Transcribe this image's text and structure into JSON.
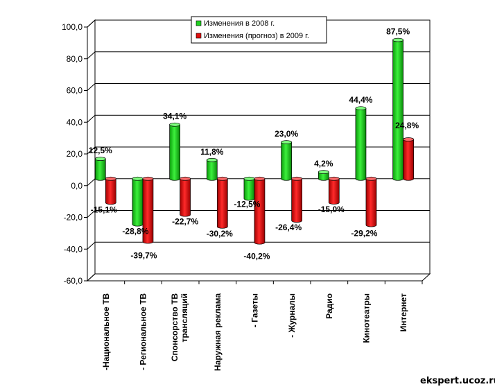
{
  "watermark": "ekspert.ucoz.ru",
  "chart_data": {
    "type": "bar",
    "title": "",
    "xlabel": "",
    "ylabel": "",
    "ylim": [
      -60,
      100
    ],
    "yticks": [
      -60,
      -40,
      -20,
      0,
      20,
      40,
      60,
      80,
      100
    ],
    "ytick_labels": [
      "-60,0",
      "-40,0",
      "-20,0",
      "0,0",
      "20,0",
      "40,0",
      "60,0",
      "80,0",
      "100,0"
    ],
    "grid": true,
    "legend_position": "top-center",
    "categories": [
      "-Национальное ТВ",
      "- Региональное ТВ",
      "Спонсорство ТВ трансляций",
      "Наружная реклама",
      "- Газеты",
      "- Журналы",
      "Радио",
      "Кинотеатры",
      "Интернет"
    ],
    "series": [
      {
        "name": "Изменения в 2008 г.",
        "color": "#1fd01f",
        "values": [
          12.5,
          -28.8,
          34.1,
          11.8,
          -12.5,
          23.0,
          4.2,
          44.4,
          87.5
        ],
        "labels": [
          "12,5%",
          "-28,8%",
          "34,1%",
          "11,8%",
          "-12,5%",
          "23,0%",
          "4,2%",
          "44,4%",
          "87,5%"
        ]
      },
      {
        "name": "Изменения (прогноз) в 2009 г.",
        "color": "#e01010",
        "values": [
          -15.1,
          -39.7,
          -22.7,
          -30.2,
          -40.2,
          -26.4,
          -15.0,
          -29.2,
          24.8
        ],
        "labels": [
          "-15,1%",
          "-39,7%",
          "-22,7%",
          "-30,2%",
          "-40,2%",
          "-26,4%",
          "-15,0%",
          "-29,2%",
          "24,8%"
        ]
      }
    ]
  }
}
